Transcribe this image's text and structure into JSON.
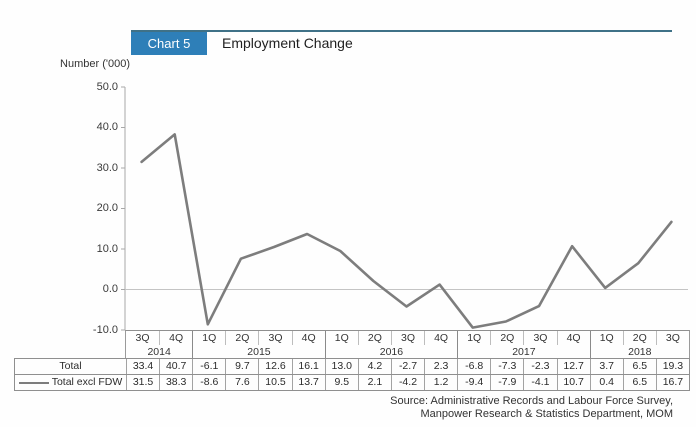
{
  "header": {
    "chart_label": "Chart 5",
    "title": "Employment Change"
  },
  "chart_data": {
    "type": "line",
    "title": "Employment Change",
    "ylabel": "Number ('000)",
    "ylim": [
      -10,
      50
    ],
    "yticks": [
      "50.0",
      "40.0",
      "30.0",
      "20.0",
      "10.0",
      "0.0",
      "-10.0"
    ],
    "grid": "zero-line-only",
    "legend_position": "table-left",
    "categories": [
      "3Q",
      "4Q",
      "1Q",
      "2Q",
      "3Q",
      "4Q",
      "1Q",
      "2Q",
      "3Q",
      "4Q",
      "1Q",
      "2Q",
      "3Q",
      "4Q",
      "1Q",
      "2Q",
      "3Q"
    ],
    "year_groups": [
      {
        "label": "2014",
        "span": 2
      },
      {
        "label": "2015",
        "span": 4
      },
      {
        "label": "2016",
        "span": 4
      },
      {
        "label": "2017",
        "span": 4
      },
      {
        "label": "2018",
        "span": 3
      }
    ],
    "series": [
      {
        "name": "Total",
        "plotted": false,
        "values": [
          33.4,
          40.7,
          -6.1,
          9.7,
          12.6,
          16.1,
          13.0,
          4.2,
          -2.7,
          2.3,
          -6.8,
          -7.3,
          -2.3,
          12.7,
          3.7,
          6.5,
          19.3
        ]
      },
      {
        "name": "Total excl FDW",
        "plotted": true,
        "color": "#7d7d7d",
        "values": [
          31.5,
          38.3,
          -8.6,
          7.6,
          10.5,
          13.7,
          9.5,
          2.1,
          -4.2,
          1.2,
          -9.4,
          -7.9,
          -4.1,
          10.7,
          0.4,
          6.5,
          16.7
        ]
      }
    ]
  },
  "source": {
    "line1": "Source: Administrative Records and Labour Force Survey,",
    "line2": "Manpower Research & Statistics Department, MOM"
  },
  "colors": {
    "accent_blue": "#2e7fb8",
    "header_rule": "#3f7187",
    "line_gray": "#7d7d7d",
    "zero_gridline": "#c4c4c4",
    "axis_gray": "#a8a8a8"
  }
}
